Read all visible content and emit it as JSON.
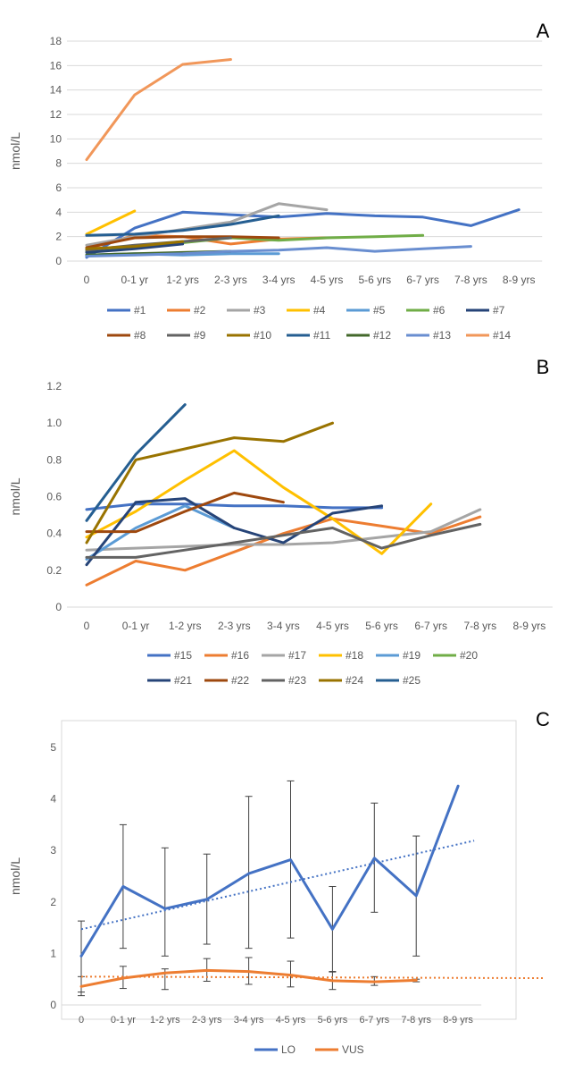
{
  "chart_data": [
    {
      "panel_label": "A",
      "type": "line",
      "ylabel": "nmol/L",
      "ylim": [
        0,
        18
      ],
      "yticks": [
        0,
        2,
        4,
        6,
        8,
        10,
        12,
        14,
        16,
        18
      ],
      "ytick_labels": [
        "0",
        "2",
        "4",
        "6",
        "8",
        "10",
        "12",
        "14",
        "16",
        "18"
      ],
      "categories": [
        "0",
        "0-1 yr",
        "1-2 yrs",
        "2-3 yrs",
        "3-4 yrs",
        "4-5 yrs",
        "5-6 yrs",
        "6-7 yrs",
        "7-8 yrs",
        "8-9 yrs"
      ],
      "grid": true,
      "legend_position": "bottom",
      "series": [
        {
          "name": "#1",
          "color": "#4472C4",
          "values": [
            0.3,
            2.7,
            4.0,
            3.8,
            3.6,
            3.9,
            3.7,
            3.6,
            2.9,
            4.2
          ]
        },
        {
          "name": "#2",
          "color": "#ED7D31",
          "values": [
            1.0,
            2.1,
            2.0,
            1.4,
            1.8,
            1.9,
            null,
            null,
            null,
            null
          ]
        },
        {
          "name": "#3",
          "color": "#A5A5A5",
          "values": [
            1.3,
            2.0,
            2.6,
            3.2,
            4.7,
            4.2,
            null,
            null,
            null,
            null
          ]
        },
        {
          "name": "#4",
          "color": "#FFC000",
          "values": [
            2.2,
            4.1,
            null,
            null,
            null,
            null,
            null,
            null,
            null,
            null
          ]
        },
        {
          "name": "#5",
          "color": "#5B9BD5",
          "values": [
            0.5,
            0.6,
            0.5,
            0.6,
            0.6,
            null,
            null,
            null,
            null,
            null
          ]
        },
        {
          "name": "#6",
          "color": "#70AD47",
          "values": [
            0.8,
            1.1,
            1.5,
            1.9,
            1.7,
            1.9,
            2.0,
            2.1,
            null,
            null
          ]
        },
        {
          "name": "#7",
          "color": "#264478",
          "values": [
            0.7,
            1.0,
            1.4,
            null,
            null,
            null,
            null,
            null,
            null,
            null
          ]
        },
        {
          "name": "#8",
          "color": "#9E480E",
          "values": [
            1.1,
            1.9,
            2.0,
            2.0,
            1.9,
            null,
            null,
            null,
            null,
            null
          ]
        },
        {
          "name": "#9",
          "color": "#636363",
          "values": [
            0.9,
            1.3,
            1.6,
            1.9,
            null,
            null,
            null,
            null,
            null,
            null
          ]
        },
        {
          "name": "#10",
          "color": "#997300",
          "values": [
            1.0,
            1.2,
            1.6,
            null,
            null,
            null,
            null,
            null,
            null,
            null
          ]
        },
        {
          "name": "#11",
          "color": "#255E91",
          "values": [
            2.1,
            2.2,
            2.5,
            3.0,
            3.7,
            null,
            null,
            null,
            null,
            null
          ]
        },
        {
          "name": "#12",
          "color": "#43682B",
          "values": [
            0.5,
            0.6,
            0.7,
            0.8,
            null,
            null,
            null,
            null,
            null,
            null
          ]
        },
        {
          "name": "#13",
          "color": "#698ED0",
          "values": [
            0.4,
            0.5,
            0.6,
            0.8,
            0.9,
            1.1,
            0.8,
            1.0,
            1.2,
            null
          ]
        },
        {
          "name": "#14",
          "color": "#F1975A",
          "values": [
            8.3,
            13.6,
            16.1,
            16.5,
            null,
            null,
            null,
            null,
            null,
            null
          ]
        }
      ]
    },
    {
      "panel_label": "B",
      "type": "line",
      "ylabel": "nmol/L",
      "ylim": [
        0,
        1.2
      ],
      "yticks": [
        0,
        0.2,
        0.4,
        0.6,
        0.8,
        1.0,
        1.2
      ],
      "ytick_labels": [
        "0",
        "0.2",
        "0.4",
        "0.6",
        "0.8",
        "1.0",
        "1.2"
      ],
      "categories": [
        "0",
        "0-1 yr",
        "1-2 yrs",
        "2-3 yrs",
        "3-4 yrs",
        "4-5 yrs",
        "5-6 yrs",
        "6-7 yrs",
        "7-8 yrs",
        "8-9 yrs"
      ],
      "grid": false,
      "legend_position": "bottom",
      "series": [
        {
          "name": "#15",
          "color": "#4472C4",
          "values": [
            0.53,
            0.56,
            0.56,
            0.55,
            0.55,
            0.54,
            0.54,
            null,
            null,
            null
          ]
        },
        {
          "name": "#16",
          "color": "#ED7D31",
          "values": [
            0.12,
            0.25,
            0.2,
            0.3,
            0.4,
            0.48,
            0.44,
            0.4,
            0.49,
            null
          ]
        },
        {
          "name": "#17",
          "color": "#A5A5A5",
          "values": [
            0.31,
            0.32,
            0.33,
            0.34,
            0.34,
            0.35,
            0.38,
            0.41,
            0.53,
            null
          ]
        },
        {
          "name": "#18",
          "color": "#FFC000",
          "values": [
            0.38,
            0.52,
            0.69,
            0.85,
            0.65,
            0.48,
            0.29,
            0.56,
            null,
            null
          ]
        },
        {
          "name": "#19",
          "color": "#5B9BD5",
          "values": [
            0.26,
            0.43,
            0.55,
            0.43,
            null,
            null,
            null,
            null,
            null,
            null
          ]
        },
        {
          "name": "#20",
          "color": "#70AD47",
          "values": [
            null,
            null,
            null,
            null,
            null,
            null,
            null,
            null,
            null,
            null
          ]
        },
        {
          "name": "#21",
          "color": "#264478",
          "values": [
            0.23,
            0.57,
            0.59,
            0.43,
            0.35,
            0.51,
            0.55,
            null,
            null,
            null
          ]
        },
        {
          "name": "#22",
          "color": "#9E480E",
          "values": [
            0.41,
            0.41,
            0.52,
            0.62,
            0.57,
            null,
            null,
            null,
            null,
            null
          ]
        },
        {
          "name": "#23",
          "color": "#636363",
          "values": [
            0.27,
            0.27,
            0.31,
            0.35,
            0.39,
            0.43,
            0.32,
            0.39,
            0.45,
            null
          ]
        },
        {
          "name": "#24",
          "color": "#997300",
          "values": [
            0.35,
            0.8,
            0.86,
            0.92,
            0.9,
            1.0,
            null,
            null,
            null,
            null
          ]
        },
        {
          "name": "#25",
          "color": "#255E91",
          "values": [
            0.47,
            0.83,
            1.1,
            null,
            null,
            null,
            null,
            null,
            null,
            null
          ]
        }
      ]
    },
    {
      "panel_label": "C",
      "type": "line",
      "ylabel": "nmol/L",
      "ylim": [
        0,
        5
      ],
      "yticks": [
        0,
        1,
        2,
        3,
        4,
        5
      ],
      "ytick_labels": [
        "0",
        "1",
        "2",
        "3",
        "4",
        "5"
      ],
      "categories": [
        "0",
        "0-1 yr",
        "1-2 yrs",
        "2-3 yrs",
        "3-4 yrs",
        "4-5 yrs",
        "5-6 yrs",
        "6-7 yrs",
        "7-8 yrs",
        "8-9 yrs"
      ],
      "grid": false,
      "legend_position": "bottom",
      "series": [
        {
          "name": "LO",
          "color": "#4472C4",
          "values": [
            0.95,
            2.3,
            1.87,
            2.05,
            2.55,
            2.82,
            1.47,
            2.85,
            2.12,
            4.25
          ],
          "error_low": [
            0.25,
            1.1,
            0.95,
            1.18,
            1.1,
            1.3,
            0.64,
            1.8,
            0.95,
            null
          ],
          "error_high": [
            1.63,
            3.5,
            3.05,
            2.93,
            4.05,
            4.35,
            2.3,
            3.92,
            3.28,
            null
          ],
          "trend": [
            1.47,
            3.19
          ]
        },
        {
          "name": "VUS",
          "color": "#ED7D31",
          "values": [
            0.36,
            0.52,
            0.62,
            0.67,
            0.65,
            0.58,
            0.47,
            0.45,
            0.48,
            null
          ],
          "error_low": [
            0.18,
            0.32,
            0.3,
            0.46,
            0.4,
            0.35,
            0.3,
            0.38,
            0.45,
            null
          ],
          "error_high": [
            0.55,
            0.75,
            0.7,
            0.9,
            0.92,
            0.85,
            0.65,
            0.55,
            0.5,
            null
          ],
          "trend": [
            0.55,
            0.52
          ]
        }
      ]
    }
  ]
}
